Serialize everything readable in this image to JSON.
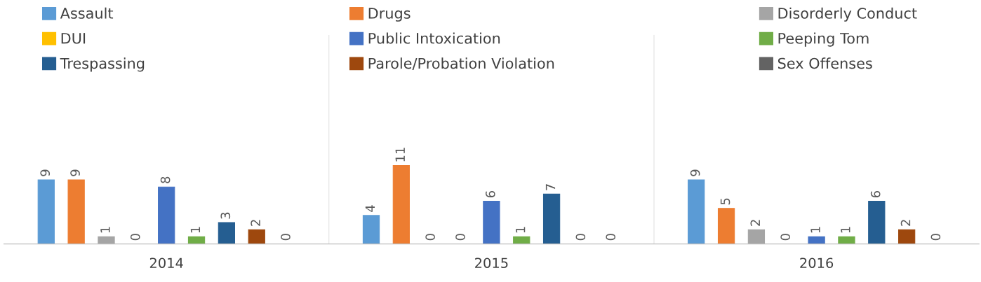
{
  "chart_data": {
    "type": "bar",
    "categories": [
      "2014",
      "2015",
      "2016"
    ],
    "series": [
      {
        "name": "Assault",
        "color": "#5b9bd5",
        "values": [
          9,
          4,
          9
        ]
      },
      {
        "name": "Drugs",
        "color": "#ed7d31",
        "values": [
          9,
          11,
          5
        ]
      },
      {
        "name": "Disorderly Conduct",
        "color": "#a5a5a5",
        "values": [
          1,
          0,
          2
        ]
      },
      {
        "name": "DUI",
        "color": "#ffc000",
        "values": [
          0,
          0,
          0
        ]
      },
      {
        "name": "Public Intoxication",
        "color": "#4472c4",
        "values": [
          8,
          6,
          1
        ]
      },
      {
        "name": "Peeping Tom",
        "color": "#70ad47",
        "values": [
          1,
          1,
          1
        ]
      },
      {
        "name": "Trespassing",
        "color": "#255e91",
        "values": [
          3,
          7,
          6
        ]
      },
      {
        "name": "Parole/Probation Violation",
        "color": "#9e480e",
        "values": [
          2,
          0,
          2
        ]
      },
      {
        "name": "Sex Offenses",
        "color": "#636363",
        "values": [
          0,
          0,
          0
        ]
      }
    ],
    "data_labels": true,
    "legend": "top",
    "grid": false
  }
}
